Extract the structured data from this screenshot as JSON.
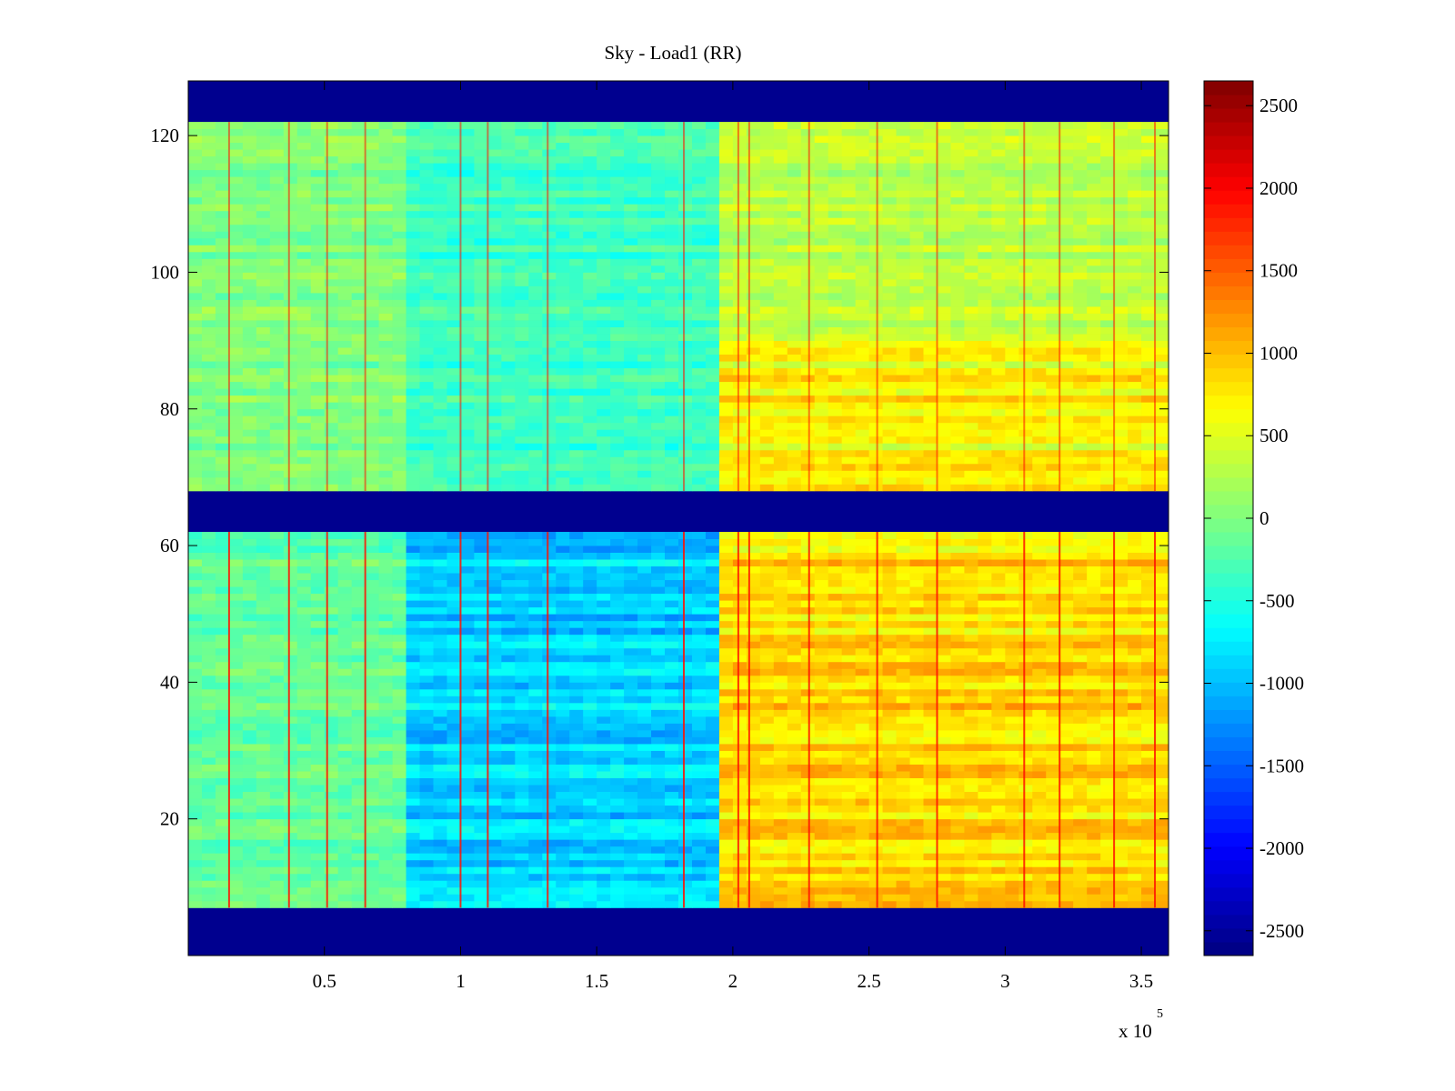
{
  "chart_data": {
    "type": "heatmap",
    "title": "Sky - Load1 (RR)",
    "xlabel": "",
    "ylabel": "",
    "x_exponent_label": "x 10",
    "x_exponent_power": "5",
    "xlim": [
      0,
      360000
    ],
    "ylim": [
      0,
      128
    ],
    "x_ticks": [
      {
        "value": 50000,
        "label": "0.5"
      },
      {
        "value": 100000,
        "label": "1"
      },
      {
        "value": 150000,
        "label": "1.5"
      },
      {
        "value": 200000,
        "label": "2"
      },
      {
        "value": 250000,
        "label": "2.5"
      },
      {
        "value": 300000,
        "label": "3"
      },
      {
        "value": 350000,
        "label": "3.5"
      }
    ],
    "y_ticks": [
      {
        "value": 20,
        "label": "20"
      },
      {
        "value": 40,
        "label": "40"
      },
      {
        "value": 60,
        "label": "60"
      },
      {
        "value": 80,
        "label": "80"
      },
      {
        "value": 100,
        "label": "100"
      },
      {
        "value": 120,
        "label": "120"
      }
    ],
    "colormap": "jet",
    "colorbar": {
      "range": [
        -2650,
        2650
      ],
      "ticks": [
        {
          "value": 2500,
          "label": "2500"
        },
        {
          "value": 2000,
          "label": "2000"
        },
        {
          "value": 1500,
          "label": "1500"
        },
        {
          "value": 1000,
          "label": "1000"
        },
        {
          "value": 500,
          "label": "500"
        },
        {
          "value": 0,
          "label": "0"
        },
        {
          "value": -500,
          "label": "-500"
        },
        {
          "value": -1000,
          "label": "-1000"
        },
        {
          "value": -1500,
          "label": "-1500"
        },
        {
          "value": -2000,
          "label": "-2000"
        },
        {
          "value": -2500,
          "label": "-2500"
        }
      ]
    },
    "masked_rows": [
      [
        0,
        7
      ],
      [
        62,
        68
      ],
      [
        122,
        128
      ]
    ],
    "regions": [
      {
        "rows": [
          68,
          122
        ],
        "x": [
          0,
          80000
        ],
        "mean": 0
      },
      {
        "rows": [
          68,
          122
        ],
        "x": [
          80000,
          195000
        ],
        "mean": -350
      },
      {
        "rows": [
          68,
          122
        ],
        "x": [
          195000,
          360000
        ],
        "mean": 300
      },
      {
        "rows": [
          68,
          90
        ],
        "x": [
          195000,
          360000
        ],
        "mean": 700
      },
      {
        "rows": [
          7,
          62
        ],
        "x": [
          0,
          80000
        ],
        "mean": -150
      },
      {
        "rows": [
          7,
          62
        ],
        "x": [
          80000,
          195000
        ],
        "mean": -900
      },
      {
        "rows": [
          7,
          62
        ],
        "x": [
          195000,
          360000
        ],
        "mean": 850
      }
    ],
    "spikes_x": [
      15000,
      37000,
      51000,
      65000,
      100000,
      110000,
      132000,
      182000,
      202000,
      206000,
      228000,
      253000,
      275000,
      307000,
      320000,
      340000,
      355000
    ],
    "grid": false,
    "colorbar_position": "right"
  }
}
